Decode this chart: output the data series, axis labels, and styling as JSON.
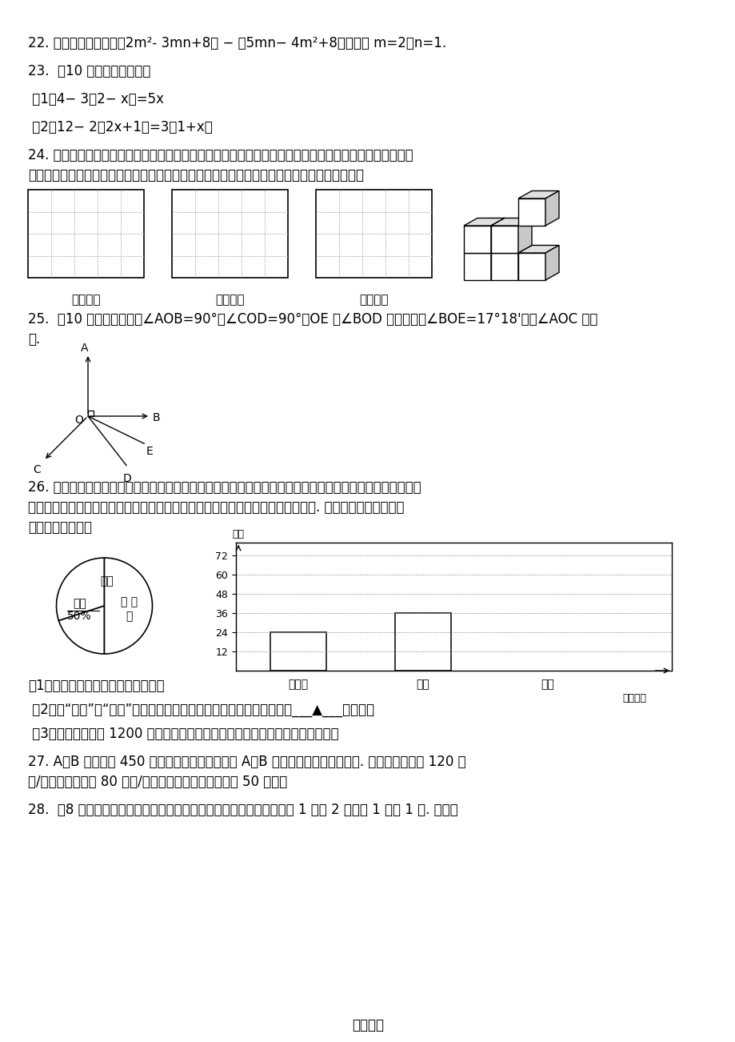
{
  "bg_color": "#ffffff",
  "q22": "22. 先化简，再求值：（2m²- 3mn+8） − （5mn− 4m²+8），其中 m=2，n=1.",
  "q23": "23.  （10 分）解下列方程：",
  "q23_1": " （1）4− 3（2− x）=5x",
  "q23_2": " （2）12− 2（2x+1）=3（1+x）",
  "q24_line1": "24. 如图是小强用八块相同的小立方体搞成的一个几何体，从正面、左面和上面观察这个几何体，请你在下",
  "q24_line2": "面相应的位置分别画出你所看到的几何体的形状图（在答题卡上画完图后请用黑色签字笔描图）",
  "q24_label1": "从正面看",
  "q24_label2": "从左面看",
  "q24_label3": "从上面看",
  "q25_line1": "25.  （10 分）如图，已知∠AOB=90°，∠COD=90°，OE 为∠BOD 的平分线，∠BOE=17°18'，求∠AOC 的度",
  "q25_line2": "数.",
  "q26_line1": "26. 漳州市某中学对全校学生进行文明礼仪知识测试，为了解测试结果，随机抽取部分学生的成绩进行分析，",
  "q26_line2": "将成绩分为三个等级：不合格、一般、优秀，并绘制成如下两幅统计图（不完整）. 请你根据图中所给的信",
  "q26_line3": "息解答下列问题：",
  "q26_q1": "（1）请将以上两幅统计图补充完整；",
  "q26_q2": " （2）若“一般”和“优秀”均被视为达标成绩，则该校被抽取的学生中有___▲___人达标；",
  "q26_q3": " （3）若该校学生有 1200 人，请你估计此次测试中，全校达标的学生有多少人？",
  "q27_line1": "27. A、B 两地相距 450 千米，甲，乙两车分别从 A、B 两地同时出发，相向而行. 已知甲车速度为 120 千",
  "q27_line2": "米/时，乙车速度为 80 千米/时，经过多少小时两车相距 50 千米？",
  "q28": "28.  （8 分）我市中学组篹球比赛中，每场比赛都要分出胜负，每队胜 1 场得 2 分，负 1 场得 1 分. 某队为",
  "footer": "精品试卷",
  "bar_yticks": [
    12,
    24,
    36,
    48,
    60,
    72
  ],
  "bar_values_shown": [
    24,
    36
  ],
  "bar_categories": [
    "不合格",
    "一般",
    "优秀"
  ],
  "bar_ylabel": "人数",
  "bar_xlabel": "成绩等级",
  "pie_label_yiban": "一般",
  "pie_label_youxiu": "优秀",
  "pie_label_pct": "50%",
  "pie_label_buhege": "不 合",
  "pie_label_ge": "格"
}
